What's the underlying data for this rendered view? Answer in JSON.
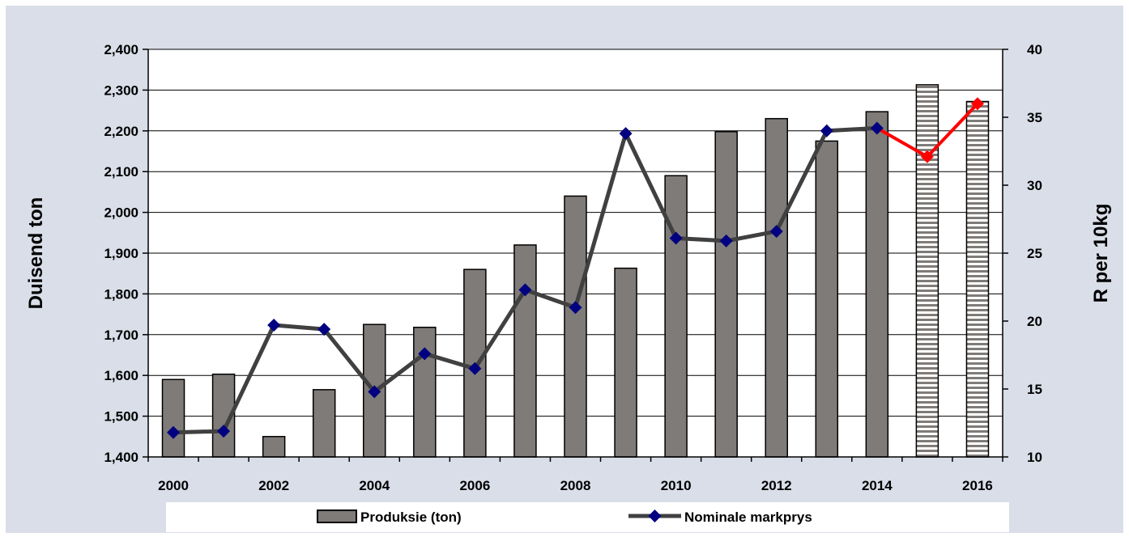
{
  "chart_data": {
    "type": "bar+line",
    "x": [
      2000,
      2001,
      2002,
      2003,
      2004,
      2005,
      2006,
      2007,
      2008,
      2009,
      2010,
      2011,
      2012,
      2013,
      2014,
      2015,
      2016
    ],
    "x_tick_labels": [
      "2000",
      "2002",
      "2004",
      "2006",
      "2008",
      "2010",
      "2012",
      "2014",
      "2016"
    ],
    "y_left": {
      "label": "Duisend ton",
      "range": [
        1400,
        2400
      ],
      "ticks": [
        "1,400",
        "1,500",
        "1,600",
        "1,700",
        "1,800",
        "1,900",
        "2,000",
        "2,100",
        "2,200",
        "2,300",
        "2,400"
      ]
    },
    "y_right": {
      "label": "R per 10kg",
      "range": [
        10,
        40
      ],
      "ticks": [
        "10",
        "15",
        "20",
        "25",
        "30",
        "35",
        "40"
      ]
    },
    "series": [
      {
        "name": "Produksie (ton)",
        "type": "bar",
        "axis": "left",
        "color": "#7f7b78",
        "values": [
          1590,
          1603,
          1450,
          1565,
          1725,
          1718,
          1860,
          1920,
          2040,
          1863,
          2090,
          2198,
          2230,
          2175,
          2247,
          2313,
          2272
        ],
        "forecast_from_index": 15
      },
      {
        "name": "Nominale markprys",
        "type": "line",
        "axis": "right",
        "line_color": "#404040",
        "marker_color": "#000080",
        "forecast_color": "#ff0000",
        "values": [
          11.8,
          11.9,
          19.7,
          19.4,
          14.8,
          17.6,
          16.5,
          22.3,
          21.0,
          33.8,
          26.1,
          25.9,
          26.6,
          34.0,
          34.2,
          32.1,
          36.0
        ],
        "forecast_from_index": 14
      }
    ],
    "grid": true,
    "legend_position": "bottom"
  }
}
